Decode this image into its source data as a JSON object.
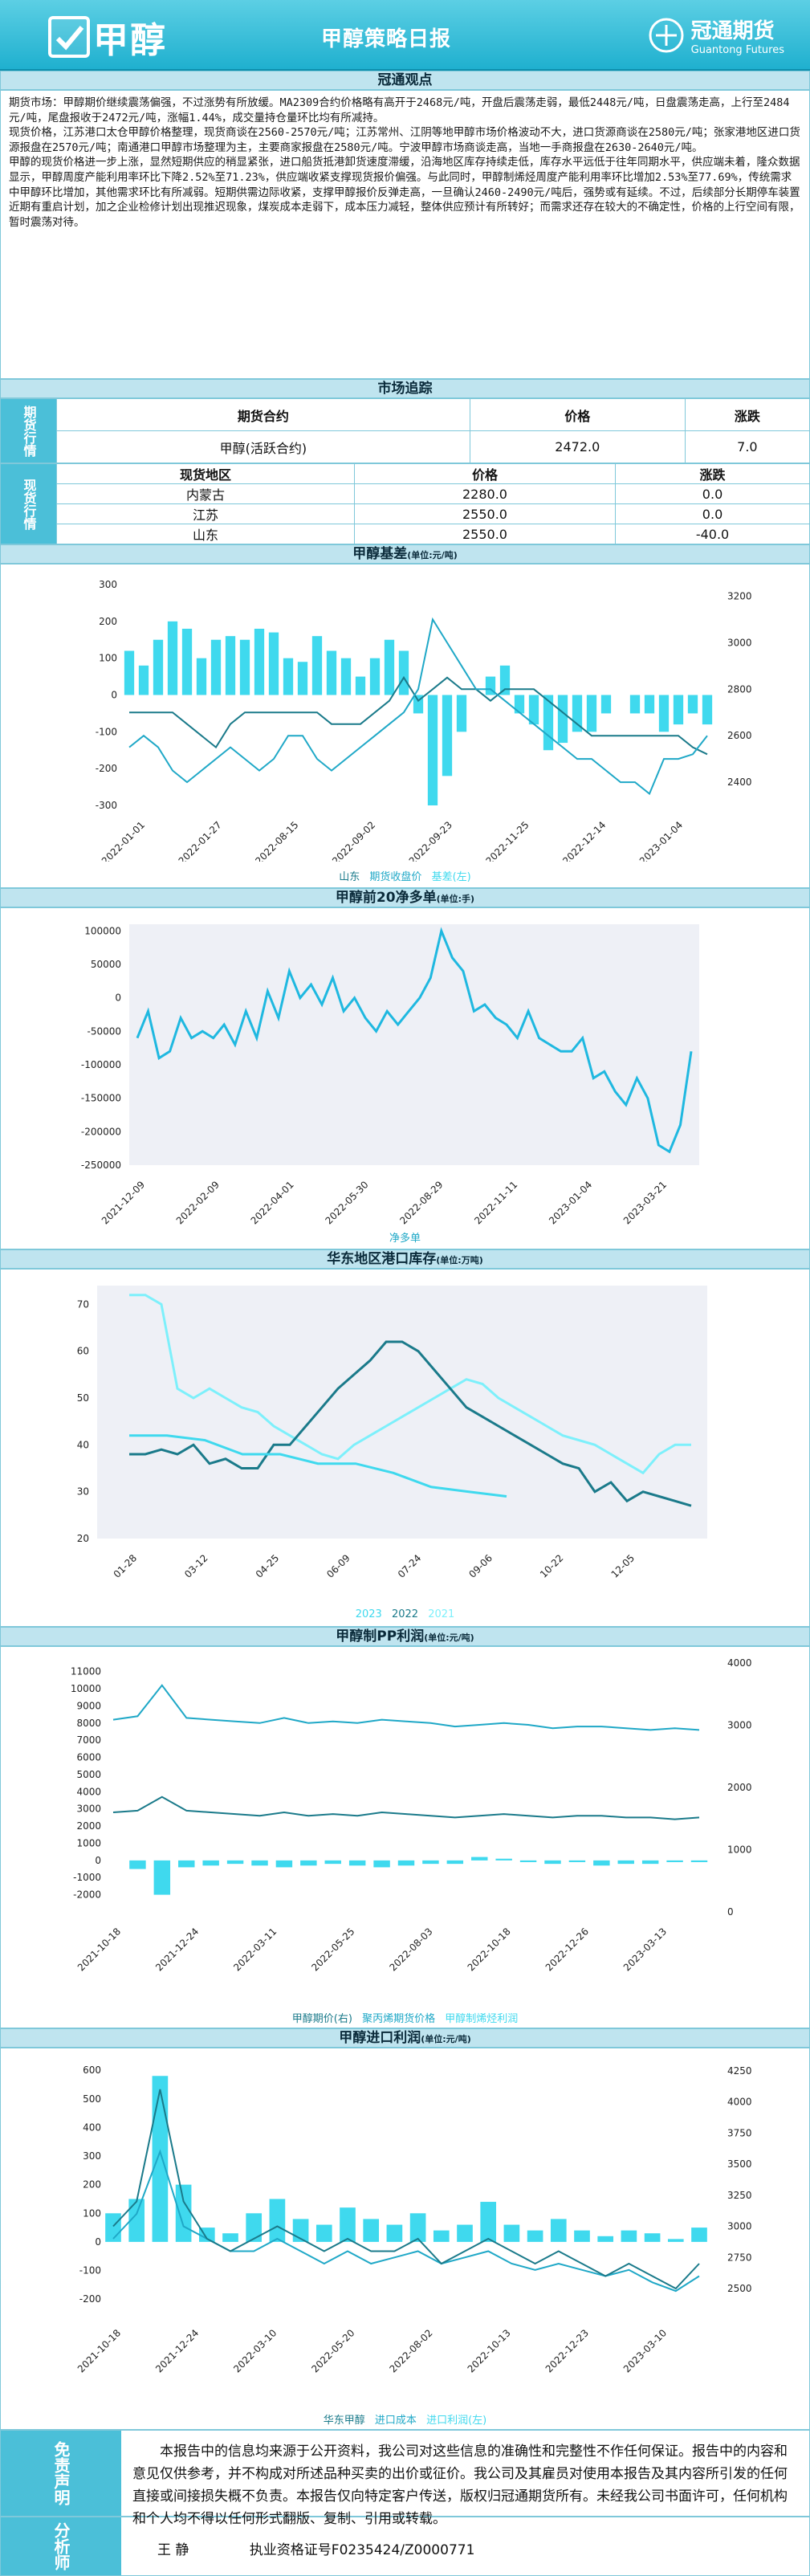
{
  "header": {
    "product": "甲醇",
    "report": "甲醇策略日报",
    "company": "冠通期货",
    "company_en": "Guantong Futures"
  },
  "sections": {
    "viewpoint": "冠通观点",
    "market": "市场追踪",
    "basis": "甲醇基差",
    "basis_unit": "(单位:元/吨)",
    "net_long": "甲醇前20净多单",
    "net_long_unit": "(单位:手)",
    "port": "华东地区港口库存",
    "port_unit": "(单位:万吨)",
    "pp": "甲醇制PP利润",
    "pp_unit": "(单位:元/吨)",
    "import": "甲醇进口利润",
    "import_unit": "(单位:元/吨)"
  },
  "viewpoint_text": [
    "期货市场：甲醇期价继续震荡偏强，不过涨势有所放缓。MA2309合约价格略有高开于2468元/吨，开盘后震荡走弱，最低2448元/吨，日盘震荡走高，上行至2484元/吨，尾盘报收于2472元/吨，涨幅1.44%，成交量持仓量环比均有所减持。",
    "现货价格，江苏港口太仓甲醇价格整理，现货商谈在2560-2570元/吨；江苏常州、江阴等地甲醇市场价格波动不大，进口货源商谈在2580元/吨；张家港地区进口货源报盘在2570元/吨；南通港口甲醇市场整理为主，主要商家报盘在2580元/吨。宁波甲醇市场商谈走高，当地一手商报盘在2630-2640元/吨。",
    "甲醇的现货价格进一步上涨，显然短期供应的稍显紧张，进口船货抵港卸货速度滞缓，沿海地区库存持续走低，库存水平远低于往年同期水平，供应端未着，隆众数据显示，甲醇周度产能利用率环比下降2.52%至71.23%，供应端收紧支撑现货报价偏强。与此同时，甲醇制烯烃周度产能利用率环比增加2.53%至77.69%，传统需求中甲醇环比增加，其他需求环比有所减弱。短期供需边际收紧，支撑甲醇报价反弹走高，一旦确认2460-2490元/吨后，强势或有延续。不过，后续部分长期停车装置近期有重启计划，加之企业检修计划出现推迟现象，煤炭成本走弱下，成本压力减轻，整体供应预计有所转好；而需求还存在较大的不确定性，价格的上行空间有限，暂时震荡对待。"
  ],
  "market": {
    "futures_label": "期货行情",
    "spot_label": "现货行情",
    "futures_headers": [
      "期货合约",
      "价格",
      "涨跌"
    ],
    "futures_rows": [
      [
        "甲醇(活跃合约)",
        "2472.0",
        "7.0"
      ]
    ],
    "spot_headers": [
      "现货地区",
      "价格",
      "涨跌"
    ],
    "spot_rows": [
      [
        "内蒙古",
        "2280.0",
        "0.0"
      ],
      [
        "江苏",
        "2550.0",
        "0.0"
      ],
      [
        "山东",
        "2550.0",
        "-40.0"
      ]
    ]
  },
  "disclaimer_label": "免责声明",
  "disclaimer": "本报告中的信息均来源于公开资料，我公司对这些信息的准确性和完整性不作任何保证。报告中的内容和意见仅供参考，并不构成对所述品种买卖的出价或征价。我公司及其雇员对使用本报告及其内容所引发的任何直接或间接损失概不负责。本报告仅向特定客户传送，版权归冠通期货所有。未经我公司书面许可，任何机构和个人均不得以任何形式翻版、复制、引用或转载。",
  "analyst_label": "分析师",
  "analyst": "王 静",
  "license": "执业资格证号F0235424/Z0000771",
  "colors": {
    "teal": "#1fa8c7",
    "cyan": "#3fd9ee",
    "dark": "#1a7a8a",
    "light_cyan": "#7df0fb"
  },
  "chart_data": [
    {
      "type": "line",
      "title": "甲醇基差",
      "x_ticks": [
        "2022-01-01",
        "2022-01-27",
        "2022-08-15",
        "2022-09-02",
        "2022-09-23",
        "2022-11-25",
        "2022-12-14",
        "2023-01-04"
      ],
      "yleft_ticks": [
        -300,
        -200,
        -100,
        0,
        100,
        200,
        300
      ],
      "yright_ticks": [
        2400,
        2600,
        2800,
        3000,
        3200
      ],
      "series": [
        {
          "name": "山东",
          "axis": "right"
        },
        {
          "name": "期货收盘价",
          "axis": "right"
        },
        {
          "name": "基差(左)",
          "axis": "left",
          "kind": "bar"
        }
      ],
      "shandong": [
        2700,
        2700,
        2700,
        2700,
        2650,
        2600,
        2550,
        2650,
        2700,
        2700,
        2700,
        2700,
        2700,
        2700,
        2650,
        2650,
        2650,
        2700,
        2750,
        2850,
        2750,
        2800,
        2850,
        2800,
        2800,
        2750,
        2800,
        2800,
        2800,
        2750,
        2700,
        2650,
        2600,
        2600,
        2600,
        2600,
        2600,
        2600,
        2600,
        2550,
        2520
      ],
      "futures": [
        2550,
        2600,
        2550,
        2450,
        2400,
        2450,
        2500,
        2550,
        2500,
        2450,
        2500,
        2600,
        2600,
        2500,
        2450,
        2500,
        2550,
        2600,
        2650,
        2700,
        2800,
        3100,
        3000,
        2900,
        2800,
        2800,
        2750,
        2700,
        2650,
        2600,
        2550,
        2500,
        2500,
        2450,
        2400,
        2400,
        2350,
        2500,
        2500,
        2520,
        2600
      ],
      "basis": [
        120,
        80,
        150,
        200,
        180,
        100,
        150,
        160,
        150,
        180,
        170,
        100,
        90,
        160,
        120,
        100,
        50,
        100,
        150,
        120,
        -50,
        -300,
        -220,
        -100,
        0,
        50,
        80,
        -50,
        -80,
        -150,
        -130,
        -100,
        -100,
        -50,
        0,
        -50,
        -50,
        -100,
        -80,
        -50,
        -80
      ]
    },
    {
      "type": "line",
      "title": "甲醇前20净多单",
      "x_ticks": [
        "2021-12-09",
        "2022-02-09",
        "2022-04-01",
        "2022-05-30",
        "2022-08-29",
        "2022-11-11",
        "2023-01-04",
        "2023-03-21"
      ],
      "y_ticks": [
        -250000,
        -200000,
        -150000,
        -100000,
        -50000,
        0,
        50000,
        100000
      ],
      "series": [
        {
          "name": "净多单"
        }
      ],
      "values": [
        -60000,
        -20000,
        -90000,
        -80000,
        -30000,
        -60000,
        -50000,
        -60000,
        -40000,
        -70000,
        -20000,
        -60000,
        10000,
        -30000,
        40000,
        0,
        20000,
        -10000,
        30000,
        -20000,
        0,
        -30000,
        -50000,
        -20000,
        -40000,
        -20000,
        0,
        30000,
        100000,
        60000,
        40000,
        -20000,
        -10000,
        -30000,
        -40000,
        -60000,
        -20000,
        -60000,
        -70000,
        -80000,
        -80000,
        -60000,
        -120000,
        -110000,
        -140000,
        -160000,
        -120000,
        -150000,
        -220000,
        -230000,
        -190000,
        -80000
      ]
    },
    {
      "type": "line",
      "title": "华东地区港口库存",
      "x_ticks": [
        "01-28",
        "03-12",
        "04-25",
        "06-09",
        "07-24",
        "09-06",
        "10-22",
        "12-05"
      ],
      "y_ticks": [
        20,
        30,
        40,
        50,
        60,
        70
      ],
      "series": [
        {
          "name": "2023"
        },
        {
          "name": "2022"
        },
        {
          "name": "2021"
        }
      ],
      "y2023": [
        42,
        42,
        41,
        38,
        38,
        36,
        36,
        34,
        31,
        30,
        29
      ],
      "y2022": [
        38,
        38,
        39,
        38,
        40,
        36,
        37,
        35,
        35,
        40,
        40,
        44,
        48,
        52,
        55,
        58,
        62,
        62,
        60,
        56,
        52,
        48,
        46,
        44,
        42,
        40,
        38,
        36,
        35,
        30,
        32,
        28,
        30,
        29,
        28,
        27
      ],
      "y2021": [
        72,
        72,
        70,
        52,
        50,
        52,
        50,
        48,
        47,
        44,
        42,
        40,
        38,
        37,
        40,
        42,
        44,
        46,
        48,
        50,
        52,
        54,
        53,
        50,
        48,
        46,
        44,
        42,
        41,
        40,
        38,
        36,
        34,
        38,
        40,
        40
      ]
    },
    {
      "type": "line",
      "title": "甲醇制PP利润",
      "x_ticks": [
        "2021-10-18",
        "2021-12-24",
        "2022-03-11",
        "2022-05-25",
        "2022-08-03",
        "2022-10-18",
        "2022-12-26",
        "2023-03-13"
      ],
      "yleft_ticks": [
        -2000,
        -1000,
        0,
        1000,
        2000,
        3000,
        4000,
        5000,
        6000,
        7000,
        8000,
        9000,
        10000,
        11000
      ],
      "yright_ticks": [
        0,
        1000,
        2000,
        3000,
        4000
      ],
      "series": [
        {
          "name": "甲醇期价(右)"
        },
        {
          "name": "聚丙烯期货价格"
        },
        {
          "name": "甲醇制烯烃利润"
        }
      ],
      "methanol": [
        2800,
        2900,
        3700,
        2900,
        2800,
        2700,
        2600,
        2800,
        2600,
        2700,
        2600,
        2800,
        2700,
        2600,
        2500,
        2600,
        2700,
        2600,
        2500,
        2600,
        2600,
        2500,
        2500,
        2400,
        2500
      ],
      "pp": [
        8200,
        8400,
        10200,
        8300,
        8200,
        8100,
        8000,
        8300,
        8000,
        8100,
        8000,
        8200,
        8100,
        8000,
        7800,
        7900,
        8000,
        7900,
        7700,
        7800,
        7800,
        7700,
        7600,
        7700,
        7600
      ],
      "profit": [
        0,
        -500,
        -2000,
        -400,
        -300,
        -200,
        -300,
        -400,
        -300,
        -200,
        -300,
        -400,
        -300,
        -200,
        -200,
        200,
        100,
        -100,
        -200,
        -100,
        -300,
        -200,
        -200,
        -100,
        -100
      ]
    },
    {
      "type": "line",
      "title": "甲醇进口利润",
      "x_ticks": [
        "2021-10-18",
        "2021-12-24",
        "2022-03-10",
        "2022-05-20",
        "2022-08-02",
        "2022-10-13",
        "2022-12-23",
        "2023-03-10"
      ],
      "yleft_ticks": [
        -200,
        -100,
        0,
        100,
        200,
        300,
        400,
        500,
        600
      ],
      "yright_ticks": [
        2500,
        2750,
        3000,
        3250,
        3500,
        3750,
        4000,
        4250
      ],
      "series": [
        {
          "name": "华东甲醇"
        },
        {
          "name": "进口成本"
        },
        {
          "name": "进口利润(左)"
        }
      ],
      "east": [
        3000,
        3200,
        4100,
        3200,
        2900,
        2800,
        2900,
        3000,
        2900,
        2800,
        2900,
        2800,
        2800,
        2900,
        2700,
        2800,
        2900,
        2800,
        2700,
        2800,
        2700,
        2600,
        2700,
        2600,
        2500,
        2700
      ],
      "cost": [
        2900,
        3100,
        3600,
        3000,
        2900,
        2800,
        2800,
        2900,
        2800,
        2700,
        2800,
        2700,
        2750,
        2800,
        2700,
        2750,
        2800,
        2700,
        2650,
        2700,
        2650,
        2600,
        2650,
        2550,
        2480,
        2600
      ],
      "imp_profit": [
        100,
        150,
        580,
        200,
        50,
        30,
        100,
        150,
        80,
        60,
        120,
        80,
        60,
        100,
        40,
        60,
        140,
        60,
        40,
        80,
        40,
        20,
        40,
        30,
        10,
        50
      ]
    }
  ]
}
